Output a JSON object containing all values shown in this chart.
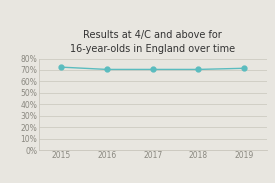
{
  "title_line1": "Results at 4/C and above for",
  "title_line2": "16-year-olds in England over time",
  "x": [
    2015,
    2016,
    2017,
    2018,
    2019
  ],
  "y": [
    72.5,
    70.5,
    70.5,
    70.5,
    71.5
  ],
  "line_color": "#5bbcbf",
  "marker_color": "#5bbcbf",
  "background_color": "#e8e6e0",
  "plot_bg_color": "#e8e6e0",
  "grid_color": "#c8c5bc",
  "tick_color": "#8a8880",
  "title_color": "#333333",
  "ylim": [
    0,
    80
  ],
  "yticks": [
    0,
    10,
    20,
    30,
    40,
    50,
    60,
    70,
    80
  ],
  "xlim": [
    2014.5,
    2019.5
  ],
  "title_fontsize": 7.0,
  "tick_fontsize": 5.5,
  "line_width": 1.0,
  "marker_size": 3.5
}
